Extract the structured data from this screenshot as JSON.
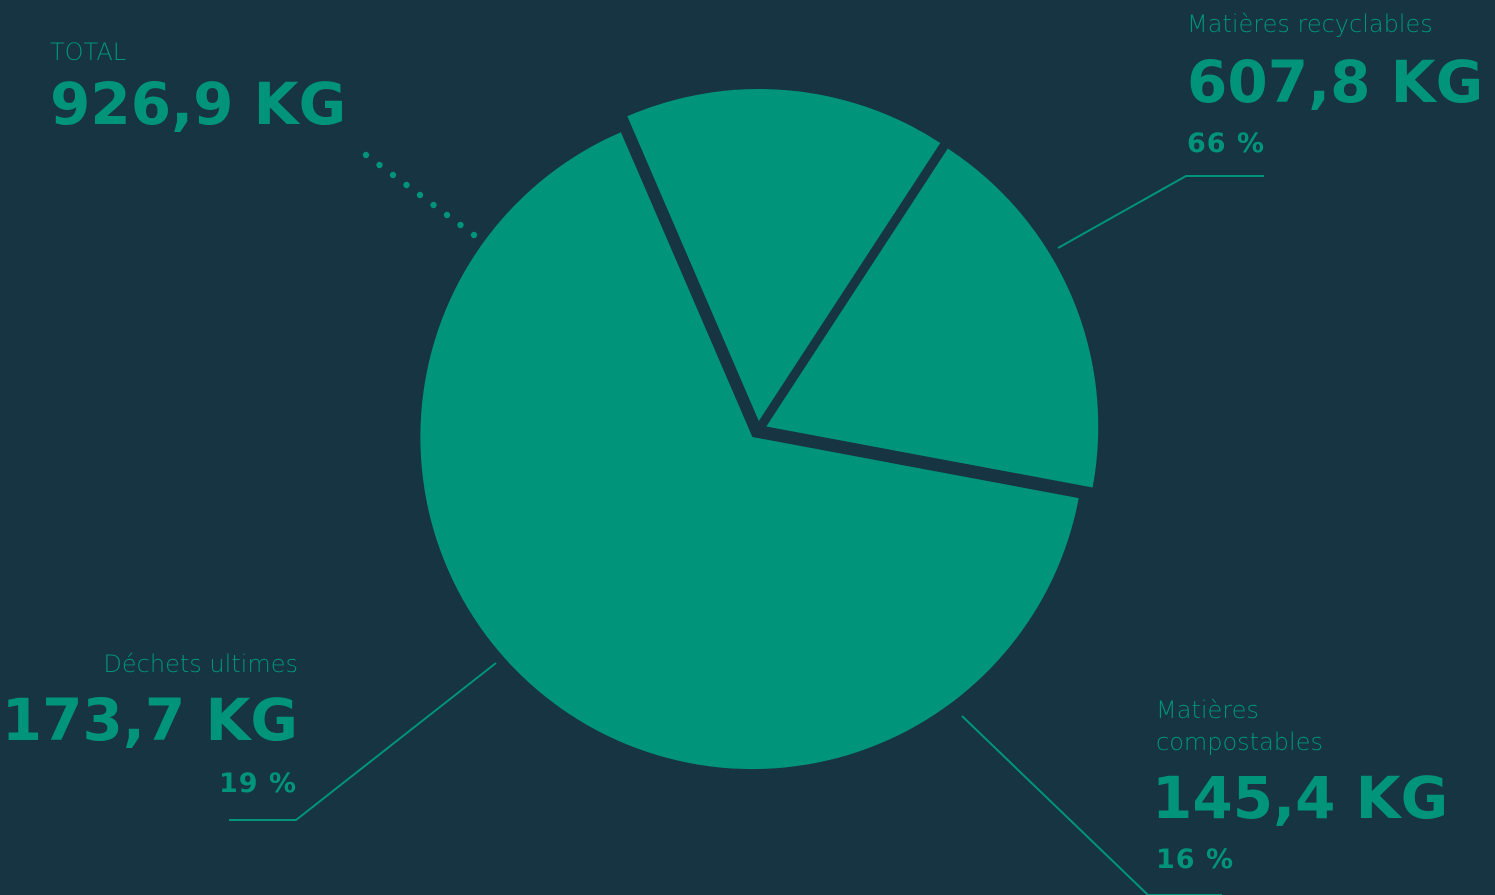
{
  "colors": {
    "background": "#163441",
    "accent": "#00957a"
  },
  "total": {
    "label": "TOTAL",
    "value": "926,9 KG"
  },
  "chart_data": {
    "type": "pie",
    "unit": "KG",
    "total": 926.9,
    "slices": [
      {
        "name": "Matières recyclables",
        "value": 607.8,
        "value_label": "607,8 KG",
        "percent": 66,
        "percent_label": "66 %"
      },
      {
        "name": "Matières compostables",
        "value": 145.4,
        "value_label": "145,4 KG",
        "percent": 16,
        "percent_label": "16 %"
      },
      {
        "name": "Déchets ultimes",
        "value": 173.7,
        "value_label": "173,7 KG",
        "percent": 19,
        "percent_label": "19 %"
      }
    ]
  }
}
